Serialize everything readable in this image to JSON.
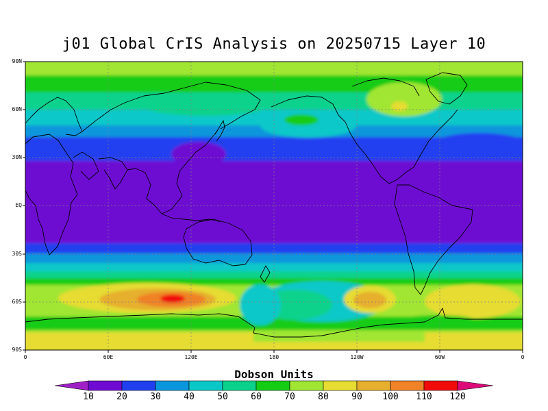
{
  "title": "j01 Global CrIS Analysis on 20250715 Layer 10",
  "y_axis": {
    "labels": [
      "90N",
      "60N",
      "30N",
      "EQ",
      "30S",
      "60S",
      "90S"
    ]
  },
  "x_axis": {
    "labels": [
      "0",
      "60E",
      "120E",
      "180",
      "120W",
      "60W",
      "0"
    ]
  },
  "colorbar": {
    "title": "Dobson Units",
    "labels": [
      "10",
      "20",
      "30",
      "40",
      "50",
      "60",
      "70",
      "80",
      "90",
      "100",
      "110",
      "120"
    ],
    "colors": [
      "#a020c8",
      "#6e0ad2",
      "#2040f0",
      "#0a96dc",
      "#0ac8c8",
      "#0ad28c",
      "#14cc14",
      "#a0e632",
      "#e6dc32",
      "#e6af2d",
      "#f08228",
      "#f00a0a",
      "#dc0a78"
    ]
  },
  "chart_data": {
    "type": "heatmap",
    "title": "j01 Global CrIS Analysis on 20250715 Layer 10",
    "units": "Dobson Units",
    "lon_range": [
      0,
      360
    ],
    "lat_range": [
      -90,
      90
    ],
    "grid": true,
    "zonal_profile": [
      {
        "lat": 80,
        "value": 82
      },
      {
        "lat": 70,
        "value": 72
      },
      {
        "lat": 60,
        "value": 62
      },
      {
        "lat": 50,
        "value": 50
      },
      {
        "lat": 40,
        "value": 38
      },
      {
        "lat": 30,
        "value": 25
      },
      {
        "lat": 15,
        "value": 15
      },
      {
        "lat": 0,
        "value": 15
      },
      {
        "lat": -15,
        "value": 15
      },
      {
        "lat": -30,
        "value": 28
      },
      {
        "lat": -40,
        "value": 45
      },
      {
        "lat": -50,
        "value": 68
      },
      {
        "lat": -60,
        "value": 82
      },
      {
        "lat": -70,
        "value": 75
      },
      {
        "lat": -85,
        "value": 88
      }
    ],
    "features": [
      {
        "label": "maximum south of Indian Ocean",
        "lon": 100,
        "lat": -58,
        "value": 120
      },
      {
        "label": "maximum south Pacific",
        "lon": 255,
        "lat": -58,
        "value": 95
      },
      {
        "label": "local maximum Greenland",
        "lon": 300,
        "lat": 63,
        "value": 90
      }
    ]
  }
}
